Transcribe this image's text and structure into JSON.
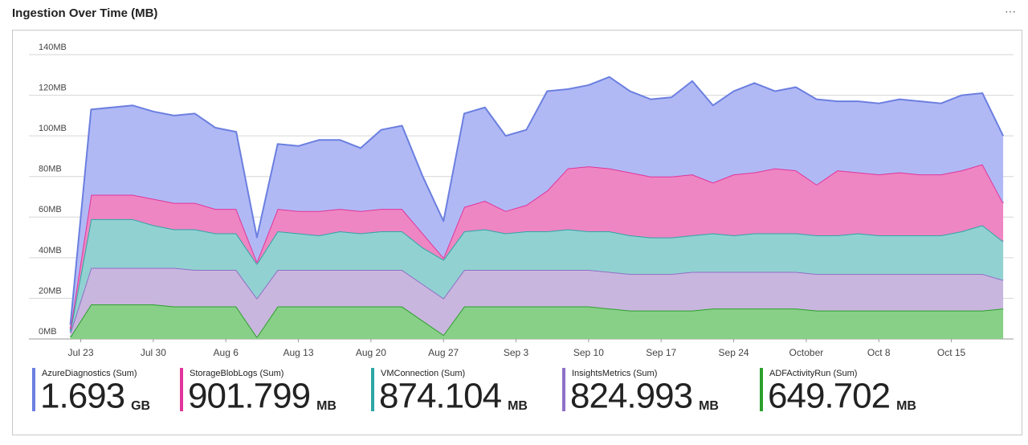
{
  "chart_data": {
    "type": "stacked_area",
    "title": "Ingestion Over Time (MB)",
    "menu": "···",
    "x": [
      -1,
      1,
      3,
      5,
      7,
      9,
      11,
      13,
      15,
      17,
      19,
      21,
      23,
      25,
      27,
      29,
      31,
      33,
      35,
      37,
      39,
      41,
      43,
      45,
      47,
      49,
      51,
      53,
      55,
      57,
      59,
      61,
      63,
      65,
      67,
      69,
      71,
      73,
      75,
      77,
      79,
      81,
      83,
      85,
      87,
      89
    ],
    "xlim": [
      -5,
      90
    ],
    "xticks": [
      {
        "value": 0,
        "label": "Jul 23"
      },
      {
        "value": 7,
        "label": "Jul 30"
      },
      {
        "value": 14,
        "label": "Aug 6"
      },
      {
        "value": 21,
        "label": "Aug 13"
      },
      {
        "value": 28,
        "label": "Aug 20"
      },
      {
        "value": 35,
        "label": "Aug 27"
      },
      {
        "value": 42,
        "label": "Sep 3"
      },
      {
        "value": 49,
        "label": "Sep 10"
      },
      {
        "value": 56,
        "label": "Sep 17"
      },
      {
        "value": 63,
        "label": "Sep 24"
      },
      {
        "value": 70,
        "label": "October"
      },
      {
        "value": 77,
        "label": "Oct 8"
      },
      {
        "value": 84,
        "label": "Oct 15"
      }
    ],
    "ylim": [
      0,
      140
    ],
    "yticks": [
      {
        "value": 0,
        "label": "0MB"
      },
      {
        "value": 20,
        "label": "20MB"
      },
      {
        "value": 40,
        "label": "40MB"
      },
      {
        "value": 60,
        "label": "60MB"
      },
      {
        "value": 80,
        "label": "80MB"
      },
      {
        "value": 100,
        "label": "100MB"
      },
      {
        "value": 120,
        "label": "120MB"
      },
      {
        "value": 140,
        "label": "140MB"
      }
    ],
    "grid": true,
    "series": [
      {
        "name": "AzureDiagnostics (Sum)",
        "color": "#6b7fe0",
        "fill": "#b1b9f5",
        "summary": 1.693,
        "summary_unit": "GB",
        "values": [
          2,
          42,
          43,
          44,
          43,
          43,
          44,
          40,
          38,
          12,
          32,
          32,
          35,
          34,
          31,
          39,
          41,
          28,
          18,
          46,
          46,
          37,
          37,
          49,
          39,
          40,
          45,
          40,
          38,
          39,
          46,
          38,
          41,
          44,
          38,
          41,
          42,
          34,
          35,
          35,
          36,
          36,
          35,
          37,
          35,
          33
        ]
      },
      {
        "name": "StorageBlobLogs (Sum)",
        "color": "#e0359a",
        "fill": "#ee86c3",
        "summary": 901.799,
        "summary_unit": "MB",
        "values": [
          1,
          12,
          12,
          12,
          13,
          13,
          13,
          12,
          12,
          1,
          11,
          11,
          12,
          11,
          11,
          11,
          11,
          7,
          1,
          12,
          14,
          11,
          13,
          20,
          30,
          32,
          31,
          31,
          30,
          30,
          30,
          25,
          30,
          30,
          32,
          31,
          25,
          32,
          30,
          30,
          31,
          30,
          30,
          30,
          30,
          19
        ]
      },
      {
        "name": "VMConnection (Sum)",
        "color": "#2ea6a6",
        "fill": "#92d1d1",
        "summary": 874.104,
        "summary_unit": "MB",
        "values": [
          1,
          24,
          24,
          24,
          21,
          19,
          20,
          18,
          18,
          17,
          19,
          18,
          17,
          19,
          18,
          19,
          19,
          18,
          19,
          19,
          20,
          18,
          19,
          19,
          20,
          19,
          20,
          19,
          18,
          18,
          18,
          19,
          18,
          19,
          19,
          19,
          19,
          19,
          20,
          19,
          19,
          19,
          19,
          21,
          24,
          19
        ]
      },
      {
        "name": "InsightsMetrics (Sum)",
        "color": "#8f70c8",
        "fill": "#c9b6de",
        "summary": 824.993,
        "summary_unit": "MB",
        "values": [
          2,
          18,
          18,
          18,
          18,
          19,
          18,
          18,
          18,
          19,
          18,
          18,
          18,
          18,
          18,
          18,
          18,
          18,
          18,
          18,
          18,
          18,
          18,
          18,
          18,
          18,
          18,
          18,
          18,
          18,
          19,
          18,
          18,
          18,
          18,
          18,
          18,
          18,
          18,
          18,
          18,
          18,
          18,
          18,
          18,
          14
        ]
      },
      {
        "name": "ADFActivityRun (Sum)",
        "color": "#2ca02c",
        "fill": "#88cf88",
        "summary": 649.702,
        "summary_unit": "MB",
        "values": [
          1,
          17,
          17,
          17,
          17,
          16,
          16,
          16,
          16,
          1,
          16,
          16,
          16,
          16,
          16,
          16,
          16,
          9,
          2,
          16,
          16,
          16,
          16,
          16,
          16,
          16,
          15,
          14,
          14,
          14,
          14,
          15,
          15,
          15,
          15,
          15,
          14,
          14,
          14,
          14,
          14,
          14,
          14,
          14,
          14,
          15
        ]
      }
    ]
  }
}
